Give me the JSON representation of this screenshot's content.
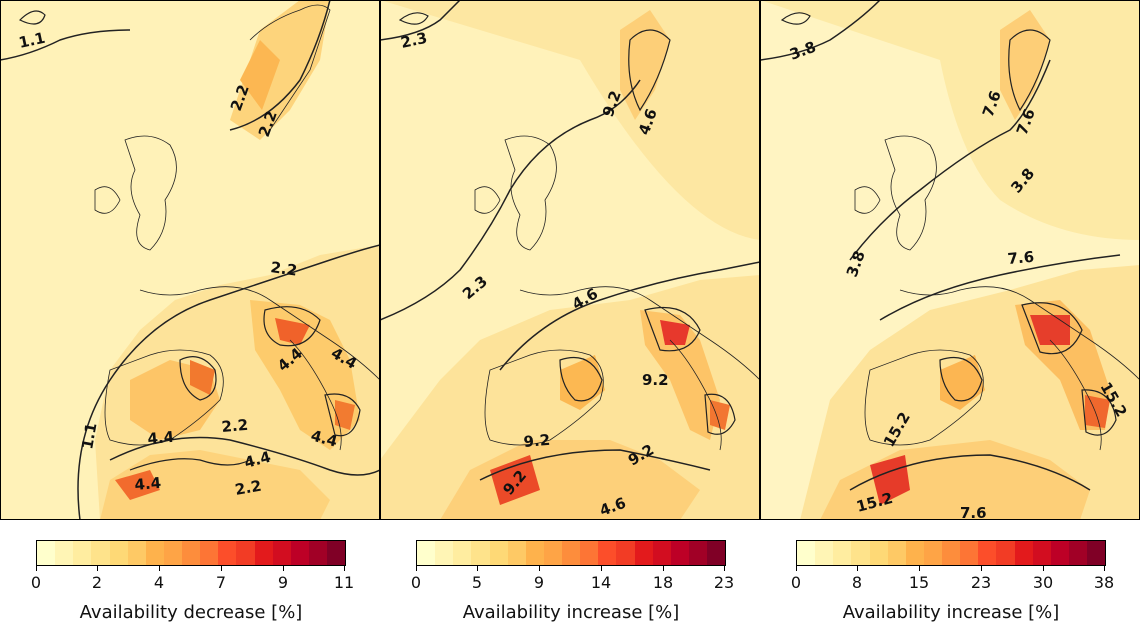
{
  "panels": [
    {
      "contour_labels": [
        "1.1",
        "2.2",
        "2.2",
        "2.2",
        "4.4",
        "4.4",
        "4.4",
        "2.2",
        "4.4",
        "4.4",
        "4.4",
        "2.2",
        "1.1"
      ],
      "colorbar": {
        "ticks": [
          "0",
          "2",
          "4",
          "7",
          "9",
          "11"
        ],
        "label": "Availability decrease [%]"
      }
    },
    {
      "contour_labels": [
        "2.3",
        "9.2",
        "4.6",
        "2.3",
        "4.6",
        "9.2",
        "9.2",
        "9.2",
        "9.2",
        "4.6"
      ],
      "colorbar": {
        "ticks": [
          "0",
          "5",
          "9",
          "14",
          "18",
          "23"
        ],
        "label": "Availability increase [%]"
      }
    },
    {
      "contour_labels": [
        "3.8",
        "7.6",
        "7.6",
        "3.8",
        "3.8",
        "7.6",
        "15.2",
        "15.2",
        "15.2",
        "7.6"
      ],
      "colorbar": {
        "ticks": [
          "0",
          "8",
          "15",
          "23",
          "30",
          "38"
        ],
        "label": "Availability increase [%]"
      }
    }
  ],
  "colormap": "YlOrRd",
  "colormap_colors": [
    "#ffffcc",
    "#fff5b5",
    "#ffeda0",
    "#fee38b",
    "#fed976",
    "#fec965",
    "#feb24c",
    "#fea446",
    "#fd8d3c",
    "#fd7535",
    "#fc4e2a",
    "#f23c25",
    "#e31a1c",
    "#d20d20",
    "#bd0026",
    "#a10026",
    "#800026"
  ],
  "styles": {
    "land_low": "#fdefb2",
    "sea_low": "#fff4bf",
    "contour": "#222222"
  }
}
